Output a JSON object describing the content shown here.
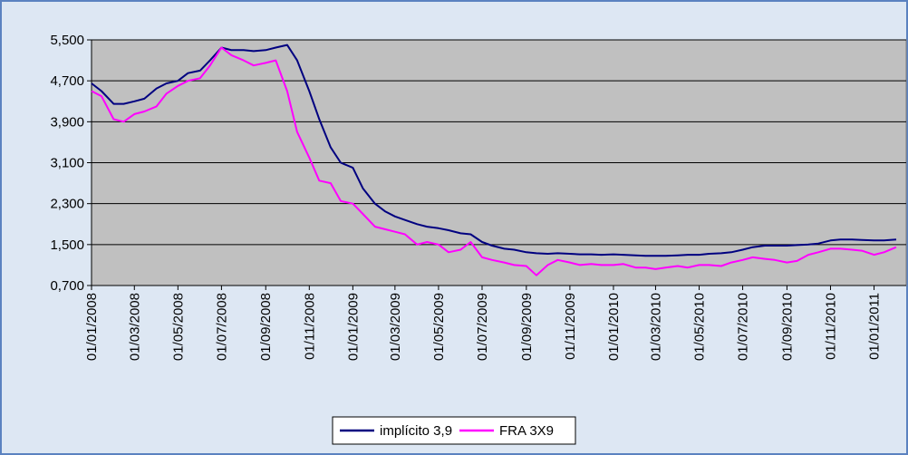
{
  "chart_data": {
    "type": "line",
    "x": [
      "2008-01-01",
      "2008-01-15",
      "2008-02-01",
      "2008-02-15",
      "2008-03-01",
      "2008-03-15",
      "2008-04-01",
      "2008-04-15",
      "2008-05-01",
      "2008-05-15",
      "2008-06-01",
      "2008-06-15",
      "2008-07-01",
      "2008-07-15",
      "2008-08-01",
      "2008-08-15",
      "2008-09-01",
      "2008-09-15",
      "2008-10-01",
      "2008-10-15",
      "2008-11-01",
      "2008-11-15",
      "2008-12-01",
      "2008-12-15",
      "2009-01-01",
      "2009-01-15",
      "2009-02-01",
      "2009-02-15",
      "2009-03-01",
      "2009-03-15",
      "2009-04-01",
      "2009-04-15",
      "2009-05-01",
      "2009-05-15",
      "2009-06-01",
      "2009-06-15",
      "2009-07-01",
      "2009-07-15",
      "2009-08-01",
      "2009-08-15",
      "2009-09-01",
      "2009-09-15",
      "2009-10-01",
      "2009-10-15",
      "2009-11-01",
      "2009-11-15",
      "2009-12-01",
      "2009-12-15",
      "2010-01-01",
      "2010-01-15",
      "2010-02-01",
      "2010-02-15",
      "2010-03-01",
      "2010-03-15",
      "2010-04-01",
      "2010-04-15",
      "2010-05-01",
      "2010-05-15",
      "2010-06-01",
      "2010-06-15",
      "2010-07-01",
      "2010-07-15",
      "2010-08-01",
      "2010-08-15",
      "2010-09-01",
      "2010-09-15",
      "2010-10-01",
      "2010-10-15",
      "2010-11-01",
      "2010-11-15",
      "2010-12-01",
      "2010-12-15",
      "2011-01-01",
      "2011-01-15",
      "2011-02-01"
    ],
    "series": [
      {
        "name": "implícito 3,9",
        "color": "#000080",
        "values": [
          4.65,
          4.5,
          4.25,
          4.25,
          4.3,
          4.35,
          4.55,
          4.65,
          4.7,
          4.85,
          4.9,
          5.1,
          5.35,
          5.3,
          5.3,
          5.28,
          5.3,
          5.35,
          5.4,
          5.1,
          4.5,
          3.95,
          3.4,
          3.1,
          3.0,
          2.6,
          2.3,
          2.15,
          2.05,
          1.98,
          1.9,
          1.85,
          1.82,
          1.78,
          1.72,
          1.7,
          1.55,
          1.48,
          1.42,
          1.4,
          1.35,
          1.33,
          1.32,
          1.33,
          1.32,
          1.31,
          1.31,
          1.3,
          1.31,
          1.3,
          1.29,
          1.28,
          1.28,
          1.28,
          1.29,
          1.3,
          1.3,
          1.32,
          1.33,
          1.35,
          1.4,
          1.45,
          1.48,
          1.48,
          1.48,
          1.49,
          1.5,
          1.52,
          1.58,
          1.6,
          1.6,
          1.59,
          1.58,
          1.58,
          1.6
        ]
      },
      {
        "name": "FRA 3X9",
        "color": "#ff00ff",
        "values": [
          4.5,
          4.4,
          3.95,
          3.9,
          4.05,
          4.1,
          4.2,
          4.45,
          4.6,
          4.7,
          4.75,
          5.0,
          5.35,
          5.2,
          5.1,
          5.0,
          5.05,
          5.1,
          4.5,
          3.7,
          3.2,
          2.75,
          2.7,
          2.35,
          2.3,
          2.1,
          1.85,
          1.8,
          1.75,
          1.7,
          1.5,
          1.55,
          1.5,
          1.35,
          1.4,
          1.55,
          1.25,
          1.2,
          1.15,
          1.1,
          1.08,
          0.9,
          1.1,
          1.2,
          1.15,
          1.1,
          1.12,
          1.1,
          1.1,
          1.12,
          1.05,
          1.05,
          1.02,
          1.05,
          1.08,
          1.05,
          1.1,
          1.1,
          1.08,
          1.15,
          1.2,
          1.25,
          1.22,
          1.2,
          1.15,
          1.18,
          1.3,
          1.35,
          1.42,
          1.42,
          1.4,
          1.38,
          1.3,
          1.35,
          1.45
        ]
      }
    ],
    "xlim": [
      "2008-01-01",
      "2011-02-15"
    ],
    "xticks": [
      {
        "value": "2008-01-01",
        "label": "01/01/2008"
      },
      {
        "value": "2008-03-01",
        "label": "01/03/2008"
      },
      {
        "value": "2008-05-01",
        "label": "01/05/2008"
      },
      {
        "value": "2008-07-01",
        "label": "01/07/2008"
      },
      {
        "value": "2008-09-01",
        "label": "01/09/2008"
      },
      {
        "value": "2008-11-01",
        "label": "01/11/2008"
      },
      {
        "value": "2009-01-01",
        "label": "01/01/2009"
      },
      {
        "value": "2009-03-01",
        "label": "01/03/2009"
      },
      {
        "value": "2009-05-01",
        "label": "01/05/2009"
      },
      {
        "value": "2009-07-01",
        "label": "01/07/2009"
      },
      {
        "value": "2009-09-01",
        "label": "01/09/2009"
      },
      {
        "value": "2009-11-01",
        "label": "01/11/2009"
      },
      {
        "value": "2010-01-01",
        "label": "01/01/2010"
      },
      {
        "value": "2010-03-01",
        "label": "01/03/2010"
      },
      {
        "value": "2010-05-01",
        "label": "01/05/2010"
      },
      {
        "value": "2010-07-01",
        "label": "01/07/2010"
      },
      {
        "value": "2010-09-01",
        "label": "01/09/2010"
      },
      {
        "value": "2010-11-01",
        "label": "01/11/2010"
      },
      {
        "value": "2011-01-01",
        "label": "01/01/2011"
      }
    ],
    "ylim": [
      0.7,
      5.5
    ],
    "yticks": [
      {
        "value": 0.7,
        "label": "0,700"
      },
      {
        "value": 1.5,
        "label": "1,500"
      },
      {
        "value": 2.3,
        "label": "2,300"
      },
      {
        "value": 3.1,
        "label": "3,100"
      },
      {
        "value": 3.9,
        "label": "3,900"
      },
      {
        "value": 4.7,
        "label": "4,700"
      },
      {
        "value": 5.5,
        "label": "5,500"
      }
    ],
    "grid": true,
    "legend": "bottom"
  }
}
